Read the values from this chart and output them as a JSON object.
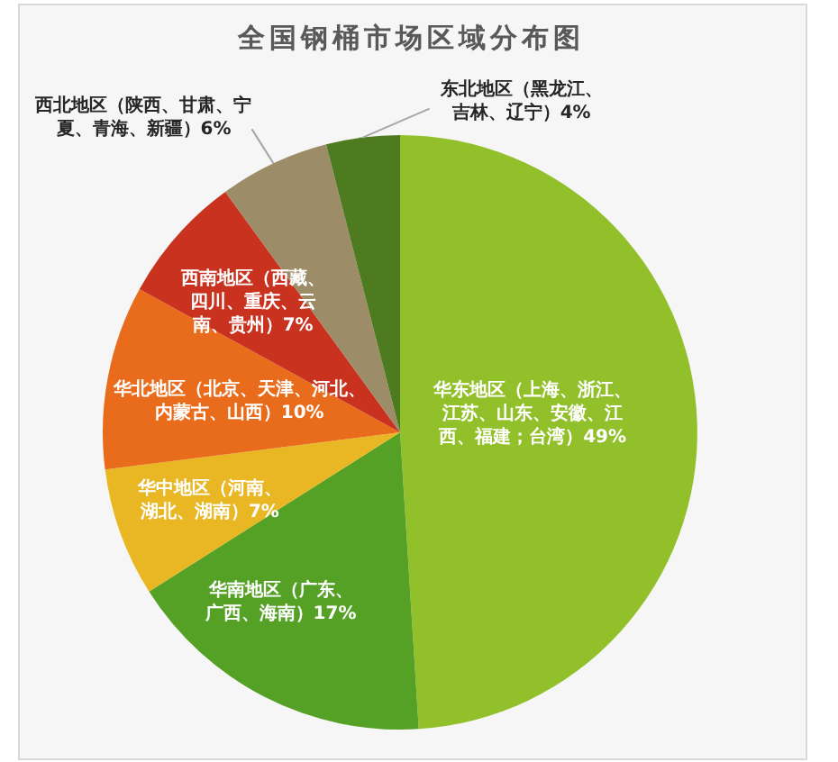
{
  "chart_data": {
    "type": "pie",
    "title": "全国钢桶市场区域分布图",
    "categories": [
      "华东地区（上海、浙江、江苏、山东、安徽、江西、福建；台湾）",
      "华南地区（广东、广西、海南）",
      "华中地区（河南、湖北、湖南）",
      "华北地区（北京、天津、河北、内蒙古、山西）",
      "西南地区（西藏、四川、重庆、云南、贵州）",
      "西北地区（陕西、甘肃、宁夏、青海、新疆）",
      "东北地区（黑龙江、吉林、辽宁）"
    ],
    "values": [
      49,
      17,
      7,
      10,
      7,
      6,
      4
    ],
    "value_labels": [
      "49%",
      "17%",
      "7%",
      "10%",
      "7%",
      "6%",
      "4%"
    ],
    "colors": [
      "#92c02a",
      "#55a126",
      "#e9b723",
      "#e96c1d",
      "#c9321f",
      "#9d8c68",
      "#4e7b1f"
    ]
  }
}
